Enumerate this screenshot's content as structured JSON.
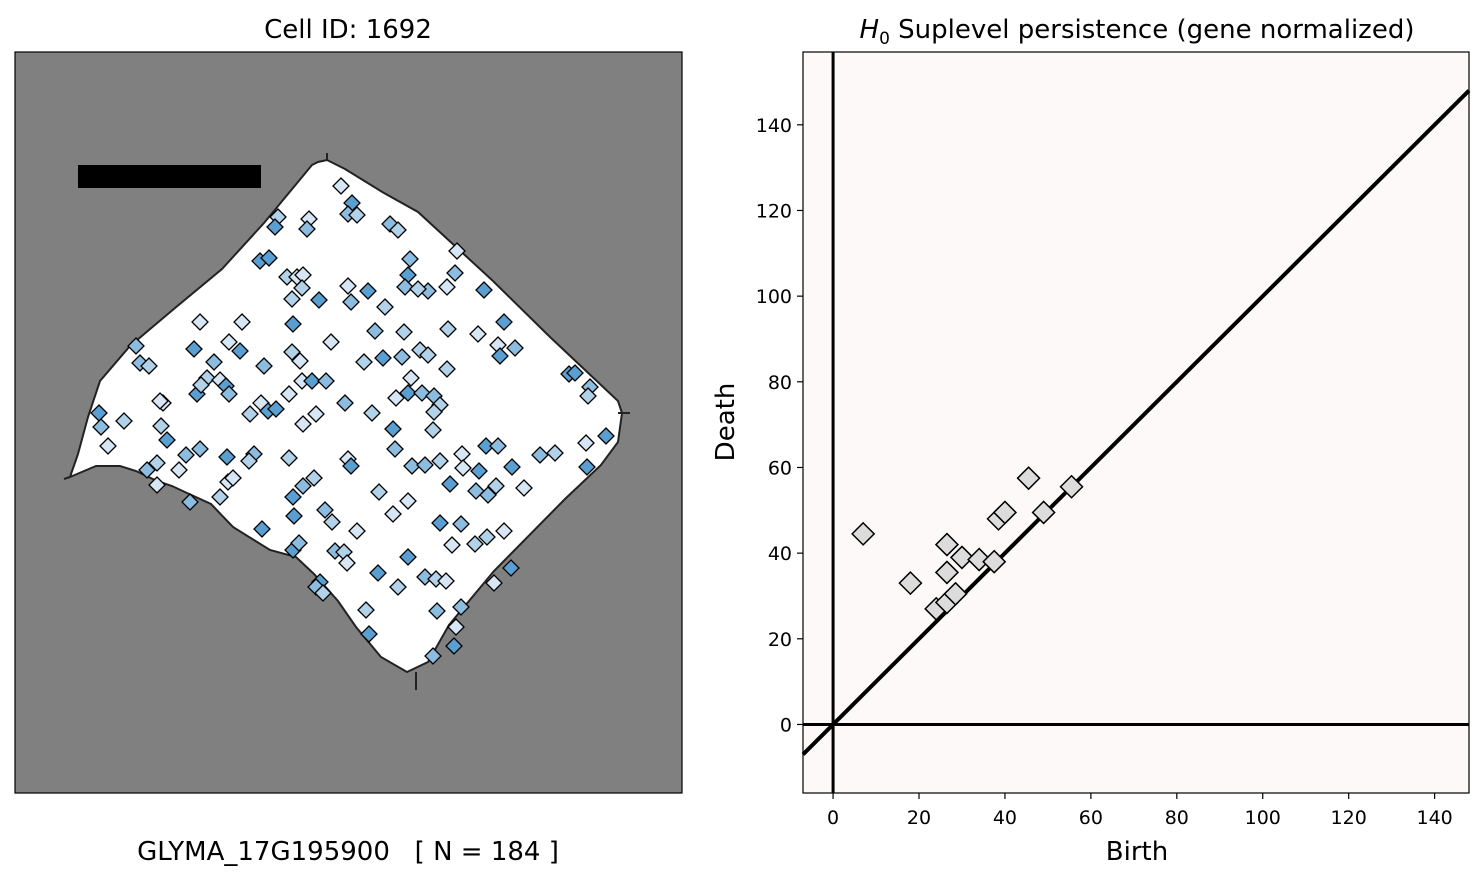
{
  "chart_data": [
    {
      "type": "scatter",
      "title": "Cell ID: 1692",
      "caption": "GLYMA_17G195900   [ N = 184 ]",
      "background_color": "#808080",
      "cell_fill": "#ffffff",
      "marker": "diamond",
      "marker_colors": [
        "#d6e6f4",
        "#b1d2e8",
        "#8cbde0",
        "#5a9fd1"
      ],
      "grid": false
    },
    {
      "type": "scatter",
      "title_math": "H",
      "title_subscript": "0",
      "title_rest": " Suplevel persistence (gene normalized)",
      "xlabel": "Birth",
      "ylabel": "Death",
      "xlim": [
        -7,
        148
      ],
      "ylim": [
        -16,
        157
      ],
      "xticks": [
        0,
        20,
        40,
        60,
        80,
        100,
        120,
        140
      ],
      "yticks": [
        0,
        20,
        40,
        60,
        80,
        100,
        120,
        140
      ],
      "background_color": "#fdf9f8",
      "marker": "diamond",
      "marker_color": "#dcdcdc",
      "grid": false,
      "diagonal": true,
      "points": [
        {
          "x": 7,
          "y": 44.5
        },
        {
          "x": 18,
          "y": 33
        },
        {
          "x": 24,
          "y": 27
        },
        {
          "x": 26.5,
          "y": 42
        },
        {
          "x": 26.5,
          "y": 35.5
        },
        {
          "x": 26.5,
          "y": 28.5
        },
        {
          "x": 28.5,
          "y": 30.5
        },
        {
          "x": 30,
          "y": 39
        },
        {
          "x": 34,
          "y": 38.5
        },
        {
          "x": 37.5,
          "y": 38
        },
        {
          "x": 38.5,
          "y": 48
        },
        {
          "x": 40,
          "y": 49.5
        },
        {
          "x": 45.5,
          "y": 57.5
        },
        {
          "x": 49,
          "y": 49.5
        },
        {
          "x": 55.5,
          "y": 55.5
        }
      ]
    }
  ]
}
